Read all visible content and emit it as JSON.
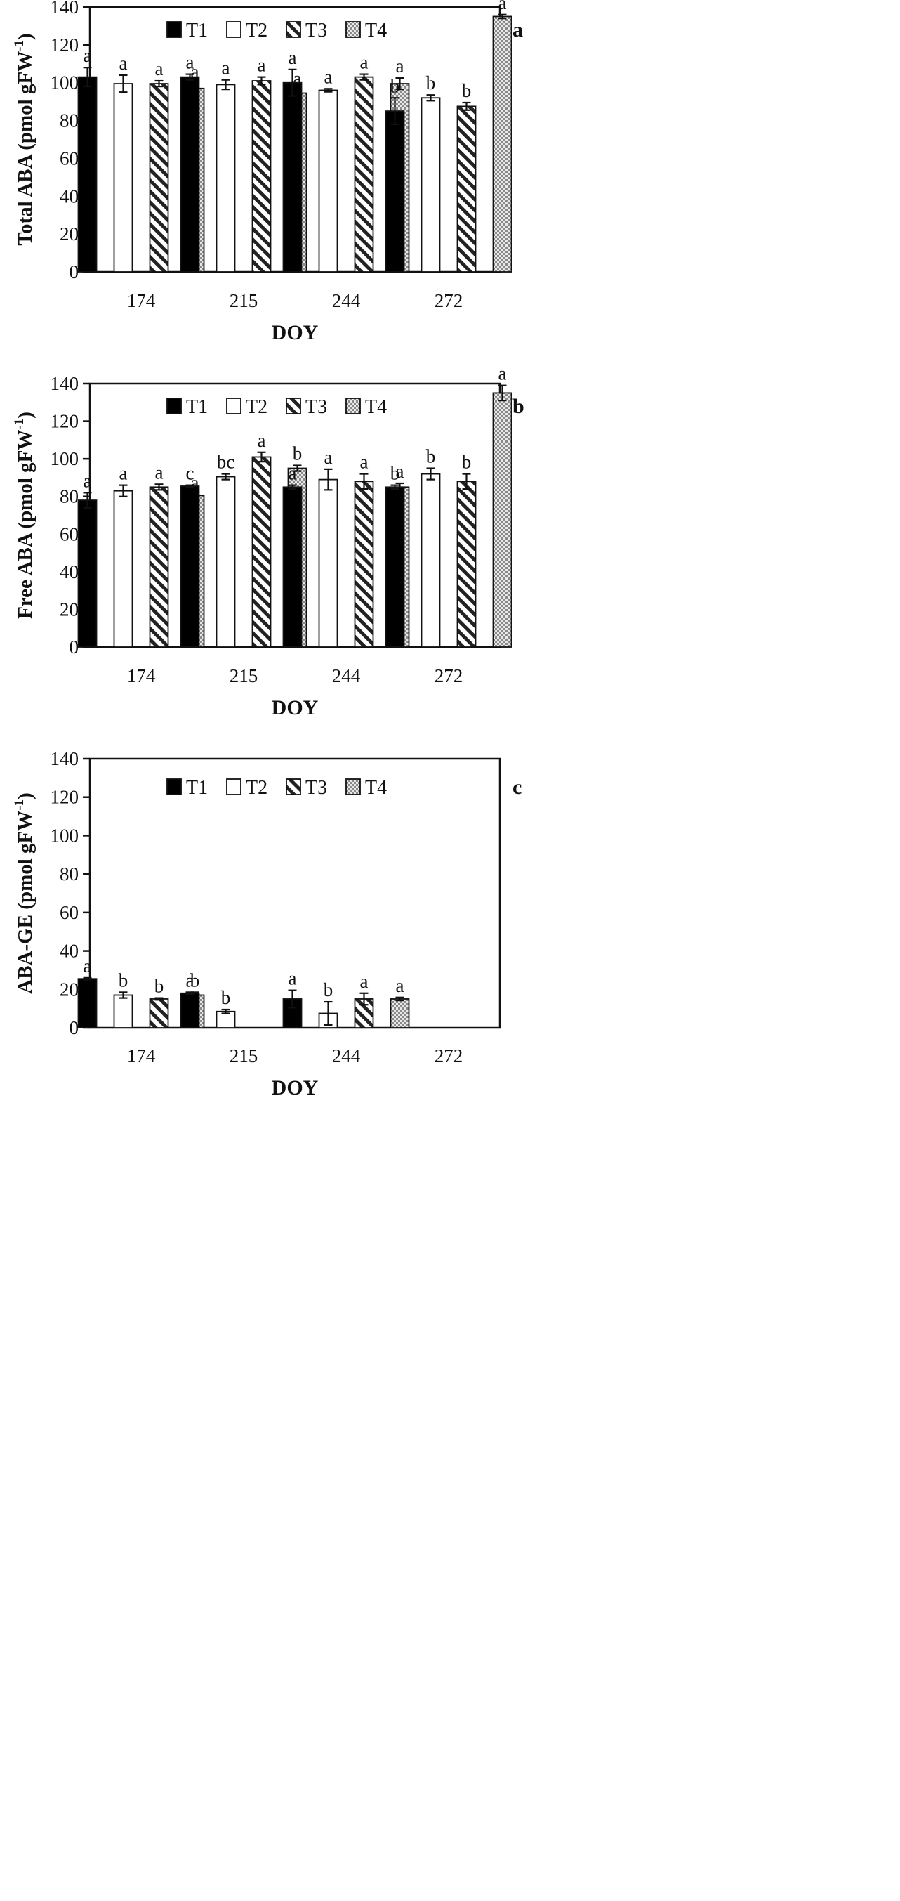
{
  "chart_data": [
    {
      "type": "bar",
      "panel": "a",
      "title": "",
      "xlabel": "DOY",
      "ylabel": "Total ABA (pmol gFW",
      "ylabel_sup": "-1",
      "ylabel_close": ")",
      "ylim": [
        0,
        140
      ],
      "yticks": [
        "0",
        "20",
        "40",
        "60",
        "80",
        "100",
        "120",
        "140"
      ],
      "categories": [
        "174",
        "215",
        "244",
        "272"
      ],
      "legend": [
        "T1",
        "T2",
        "T3",
        "T4"
      ],
      "series": [
        {
          "name": "T1",
          "values": [
            103,
            103,
            100,
            85
          ],
          "errors": [
            5,
            1.5,
            7,
            7
          ],
          "letters": [
            "a",
            "a",
            "a",
            "b"
          ]
        },
        {
          "name": "T2",
          "values": [
            99.5,
            99,
            96,
            92
          ],
          "errors": [
            4.5,
            2.5,
            0.8,
            1.5
          ],
          "letters": [
            "a",
            "a",
            "a",
            "b"
          ]
        },
        {
          "name": "T3",
          "values": [
            99.5,
            101,
            103,
            87.5
          ],
          "errors": [
            1.5,
            2,
            1.5,
            2
          ],
          "letters": [
            "a",
            "a",
            "a",
            "b"
          ]
        },
        {
          "name": "T4",
          "values": [
            97,
            94.5,
            99.5,
            135
          ],
          "errors": [
            2.5,
            1.5,
            3,
            1
          ],
          "letters": [
            "a",
            "a",
            "a",
            "a"
          ]
        }
      ]
    },
    {
      "type": "bar",
      "panel": "b",
      "title": "",
      "xlabel": "DOY",
      "ylabel": "Free ABA (pmol gFW",
      "ylabel_sup": "-1",
      "ylabel_close": ")",
      "ylim": [
        0,
        140
      ],
      "yticks": [
        "0",
        "20",
        "40",
        "60",
        "80",
        "100",
        "120",
        "140"
      ],
      "categories": [
        "174",
        "215",
        "244",
        "272"
      ],
      "legend": [
        "T1",
        "T2",
        "T3",
        "T4"
      ],
      "series": [
        {
          "name": "T1",
          "values": [
            78,
            85.5,
            85,
            85
          ],
          "errors": [
            4,
            0.5,
            1,
            1
          ],
          "letters": [
            "a",
            "c",
            "a",
            "b"
          ]
        },
        {
          "name": "T2",
          "values": [
            83,
            90.5,
            89,
            92
          ],
          "errors": [
            3,
            1.5,
            5.5,
            3
          ],
          "letters": [
            "a",
            "bc",
            "a",
            "b"
          ]
        },
        {
          "name": "T3",
          "values": [
            85,
            101,
            88,
            88
          ],
          "errors": [
            1.5,
            2.5,
            4,
            4
          ],
          "letters": [
            "a",
            "a",
            "a",
            "b"
          ]
        },
        {
          "name": "T4",
          "values": [
            80.5,
            95,
            85,
            135
          ],
          "errors": [
            0.5,
            1.5,
            2,
            4
          ],
          "letters": [
            "a",
            "b",
            "a",
            "a"
          ]
        }
      ]
    },
    {
      "type": "bar",
      "panel": "c",
      "title": "",
      "xlabel": "DOY",
      "ylabel": "ABA-GE (pmol gFW",
      "ylabel_sup": "-1",
      "ylabel_close": ")",
      "ylim": [
        0,
        140
      ],
      "yticks": [
        "0",
        "20",
        "40",
        "60",
        "80",
        "100",
        "120",
        "140"
      ],
      "categories": [
        "174",
        "215",
        "244",
        "272"
      ],
      "legend": [
        "T1",
        "T2",
        "T3",
        "T4"
      ],
      "series": [
        {
          "name": "T1",
          "values": [
            25.5,
            18,
            15,
            null
          ],
          "errors": [
            0.5,
            0.5,
            4.5,
            null
          ],
          "letters": [
            "a",
            "a",
            "a",
            ""
          ]
        },
        {
          "name": "T2",
          "values": [
            17,
            8.5,
            7.5,
            null
          ],
          "errors": [
            1.5,
            1,
            6,
            null
          ],
          "letters": [
            "b",
            "b",
            "b",
            ""
          ]
        },
        {
          "name": "T3",
          "values": [
            15,
            null,
            15,
            null
          ],
          "errors": [
            0.5,
            null,
            3,
            null
          ],
          "letters": [
            "b",
            "",
            "a",
            ""
          ]
        },
        {
          "name": "T4",
          "values": [
            17,
            null,
            15,
            null
          ],
          "errors": [
            1.5,
            null,
            0.8,
            null
          ],
          "letters": [
            "b",
            "",
            "a",
            ""
          ]
        }
      ]
    }
  ],
  "colors": {
    "T1": "#000000",
    "T2": "#ffffff",
    "T3_stripe": "#222222",
    "T4_base": "#8c8c8c",
    "T4_dot": "#e6e6e6"
  }
}
